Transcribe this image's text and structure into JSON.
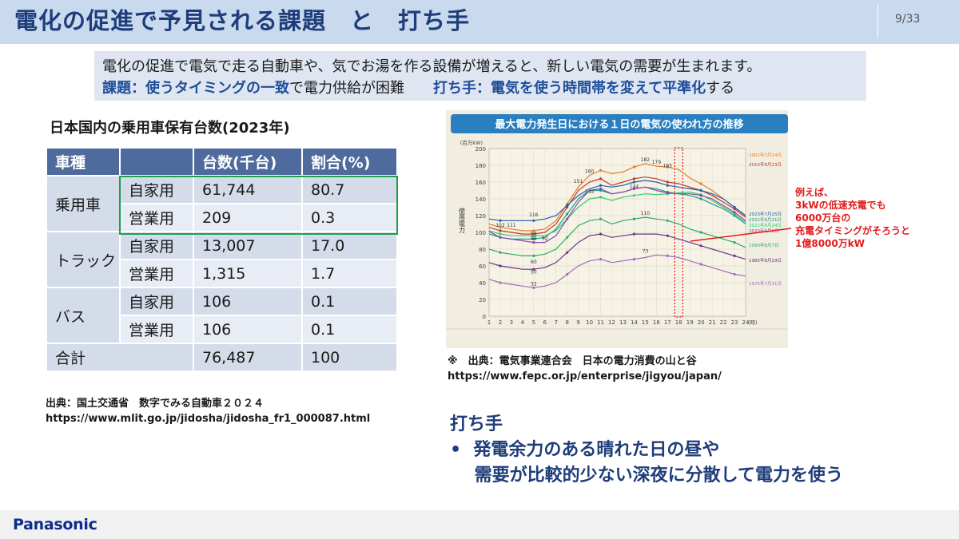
{
  "slide": {
    "title": "電化の促進で予見される課題　と　打ち手",
    "page": "9/33",
    "summary_line1": "電化の促進で電気で走る自動車や、気でお湯を作る設備が増えると、新しい電気の需要が生まれます。",
    "summary_issue_label": "課題：使うタイミングの一致",
    "summary_issue_text": "で電力供給が困難　",
    "summary_action_label": "打ち手：電気を使う時間帯を変えて平準化",
    "summary_action_text": "する"
  },
  "table": {
    "title": "日本国内の乗用車保有台数(2023年)",
    "headers": [
      "車種",
      "",
      "台数(千台)",
      "割合(%)"
    ],
    "rows": [
      {
        "type": "乗用車",
        "use": "自家用",
        "count": "61,744",
        "ratio": "80.7"
      },
      {
        "type": "",
        "use": "営業用",
        "count": "209",
        "ratio": "0.3"
      },
      {
        "type": "トラック",
        "use": "自家用",
        "count": "13,007",
        "ratio": "17.0"
      },
      {
        "type": "",
        "use": "営業用",
        "count": "1,315",
        "ratio": "1.7"
      },
      {
        "type": "バス",
        "use": "自家用",
        "count": "106",
        "ratio": "0.1"
      },
      {
        "type": "",
        "use": "営業用",
        "count": "106",
        "ratio": "0.1"
      }
    ],
    "total_label": "合計",
    "total_count": "76,487",
    "total_ratio": "100",
    "source_line1": "出典：国土交通省　数字でみる自動車２０２４",
    "source_line2": "https://www.mlit.go.jp/jidosha/jidosha_fr1_000087.html"
  },
  "chart_data": {
    "type": "line",
    "title": "最大電力発生日における１日の電気の使われ方の推移",
    "ylabel": "使用電力",
    "yunit": "(百万kW)",
    "xunit": "(時)",
    "x": [
      1,
      2,
      3,
      4,
      5,
      6,
      7,
      8,
      9,
      10,
      11,
      12,
      13,
      14,
      15,
      16,
      17,
      18,
      19,
      20,
      21,
      22,
      23,
      24
    ],
    "ylim": [
      0,
      200
    ],
    "yticks": [
      0,
      20,
      40,
      60,
      80,
      100,
      120,
      140,
      160,
      180,
      200
    ],
    "series": [
      {
        "name": "2001年7月24日",
        "color": "#e67e22",
        "values": [
          110,
          106,
          104,
          102,
          102,
          104,
          114,
          134,
          154,
          168,
          174,
          170,
          172,
          178,
          182,
          179,
          178,
          175,
          165,
          158,
          150,
          140,
          130,
          120
        ]
      },
      {
        "name": "2010年8月23日",
        "color": "#c0392b",
        "values": [
          106,
          102,
          100,
          98,
          98,
          100,
          110,
          130,
          150,
          160,
          164,
          156,
          160,
          164,
          166,
          164,
          160,
          158,
          154,
          150,
          144,
          136,
          128,
          118
        ]
      },
      {
        "name": "2023年7月25日",
        "color": "#1f5fb0",
        "values": [
          116,
          114,
          114,
          114,
          114,
          116,
          120,
          132,
          144,
          152,
          156,
          154,
          156,
          160,
          162,
          160,
          156,
          154,
          152,
          150,
          146,
          140,
          130,
          120
        ]
      },
      {
        "name": "2022年6月21日",
        "color": "#16a085",
        "values": [
          98,
          94,
          92,
          92,
          92,
          94,
          104,
          122,
          140,
          150,
          150,
          146,
          148,
          152,
          154,
          152,
          148,
          146,
          144,
          140,
          134,
          128,
          120,
          110
        ]
      },
      {
        "name": "2021年8月24日",
        "color": "#2ecc71",
        "values": [
          102,
          98,
          96,
          96,
          96,
          96,
          102,
          116,
          130,
          140,
          142,
          138,
          142,
          144,
          146,
          145,
          146,
          147,
          148,
          145,
          138,
          130,
          122,
          112
        ]
      },
      {
        "name": "2020年9月2日",
        "color": "#8e44ad",
        "values": [
          101,
          94,
          92,
          90,
          88,
          88,
          96,
          116,
          136,
          150,
          152,
          146,
          148,
          152,
          154,
          150,
          147,
          146,
          146,
          144,
          140,
          132,
          124,
          114
        ]
      },
      {
        "name": "1990年8月7日",
        "color": "#27ae60",
        "values": [
          80,
          76,
          74,
          72,
          72,
          74,
          80,
          94,
          108,
          114,
          116,
          110,
          114,
          116,
          118,
          116,
          114,
          110,
          104,
          100,
          96,
          92,
          88,
          82
        ]
      },
      {
        "name": "1985年8月29日",
        "color": "#6c3483",
        "values": [
          64,
          60,
          58,
          56,
          56,
          58,
          64,
          76,
          88,
          96,
          98,
          94,
          96,
          98,
          98,
          98,
          96,
          92,
          88,
          84,
          80,
          76,
          72,
          68
        ]
      },
      {
        "name": "1975年7月31日",
        "color": "#a569bd",
        "values": [
          44,
          40,
          38,
          36,
          34,
          36,
          40,
          50,
          60,
          66,
          68,
          64,
          66,
          68,
          70,
          73,
          72,
          70,
          66,
          62,
          58,
          54,
          50,
          48
        ]
      }
    ],
    "annotations": [
      "182",
      "179",
      "165",
      "160",
      "151",
      "145",
      "144",
      "116",
      "110",
      "102",
      "111",
      "94",
      "88",
      "92",
      "60",
      "73",
      "50",
      "32"
    ],
    "highlight_hour": 18
  },
  "chart_source": {
    "line1": "※　出典：電気事業連合会　日本の電力消費の山と谷",
    "line2": "https://www.fepc.or.jp/enterprise/jigyou/japan/"
  },
  "callout": "例えば、\n3kWの低速充電でも\n6000万台の\n充電タイミングがそろうと\n1億8000万kW",
  "solution": {
    "heading": "打ち手",
    "line1": "•  発電余力のある晴れた日の昼や",
    "line2": "    需要が比較的少ない深夜に分散して電力を使う"
  },
  "footer": {
    "logo": "Panasonic"
  },
  "colors": {
    "title": "#1f3d7a",
    "header_band": "#c9d9ee",
    "table_header": "#4f6a9c",
    "highlight_box": "#1f9e4b",
    "callout": "#e41a1a"
  }
}
